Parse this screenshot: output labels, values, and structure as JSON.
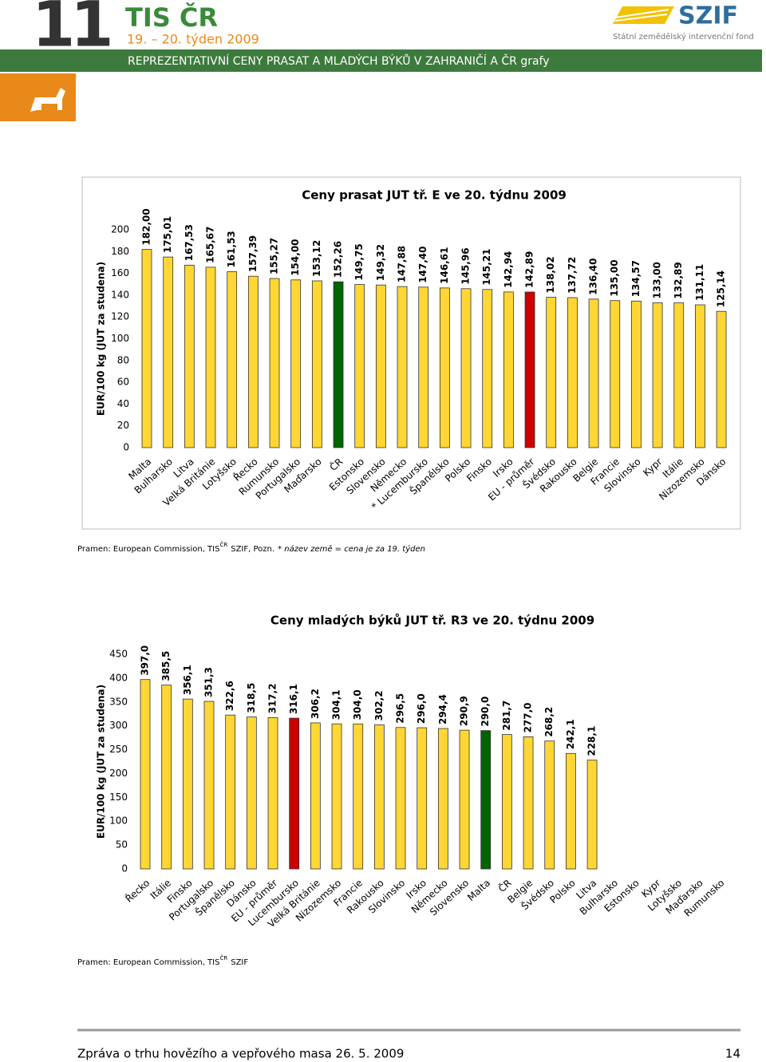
{
  "header": {
    "number": "11",
    "brand": "TIS ČR",
    "week": "19. – 20. týden 2009",
    "subtitle": "REPREZENTATIVNÍ CENY PRASAT A MLADÝCH BÝKŮ V ZAHRANIČÍ A ČR grafy",
    "logo": "SZIF",
    "logo_caption": "Státní zemědělský intervenční fond"
  },
  "chart_data": [
    {
      "type": "bar",
      "title": "Ceny prasat JUT tř. E ve 20. týdnu 2009",
      "y_label": "EUR/100 kg (JUT za studena)",
      "categories": [
        "Malta",
        "Bulharsko",
        "Litva",
        "Velká Británie",
        "Lotyšsko",
        "Řecko",
        "Rumunsko",
        "Portugalsko",
        "Maďarsko",
        "ČR",
        "Estonsko",
        "Slovensko",
        "Německo",
        "* Lucembursko",
        "Španělsko",
        "Polsko",
        "Finsko",
        "Irsko",
        "EU - průměr",
        "Švédsko",
        "Rakousko",
        "Belgie",
        "Francie",
        "Slovinsko",
        "Kypr",
        "Itálie",
        "Nizozemsko",
        "Dánsko"
      ],
      "values": [
        182.0,
        175.01,
        167.53,
        165.67,
        161.53,
        157.39,
        155.27,
        154.0,
        153.12,
        152.26,
        149.75,
        149.32,
        147.88,
        147.4,
        146.61,
        145.96,
        145.21,
        142.94,
        142.89,
        138.02,
        137.72,
        136.4,
        135.0,
        134.57,
        133.0,
        132.89,
        131.11,
        125.14
      ],
      "value_labels": [
        "182,00",
        "175,01",
        "167,53",
        "165,67",
        "161,53",
        "157,39",
        "155,27",
        "154,00",
        "153,12",
        "152,26",
        "149,75",
        "149,32",
        "147,88",
        "147,40",
        "146,61",
        "145,96",
        "145,21",
        "142,94",
        "142,89",
        "138,02",
        "137,72",
        "136,40",
        "135,00",
        "134,57",
        "133,00",
        "132,89",
        "131,11",
        "125,14"
      ],
      "colors": [
        "#ffd633",
        "#ffd633",
        "#ffd633",
        "#ffd633",
        "#ffd633",
        "#ffd633",
        "#ffd633",
        "#ffd633",
        "#ffd633",
        "#006400",
        "#ffd633",
        "#ffd633",
        "#ffd633",
        "#ffd633",
        "#ffd633",
        "#ffd633",
        "#ffd633",
        "#ffd633",
        "#cc0000",
        "#ffd633",
        "#ffd633",
        "#ffd633",
        "#ffd633",
        "#ffd633",
        "#ffd633",
        "#ffd633",
        "#ffd633",
        "#ffd633"
      ],
      "ylim": [
        0,
        200
      ],
      "yticks": [
        0,
        20,
        40,
        60,
        80,
        100,
        120,
        140,
        160,
        180,
        200
      ]
    },
    {
      "type": "bar",
      "title": "Ceny mladých býků JUT tř. R3 ve 20. týdnu 2009",
      "y_label": "EUR/100 kg (JUT za studena)",
      "categories": [
        "Řecko",
        "Itálie",
        "Finsko",
        "Portugalsko",
        "Španělsko",
        "Dánsko",
        "EU - průměr",
        "Lucembursko",
        "Velká Británie",
        "Nizozemsko",
        "Francie",
        "Rakousko",
        "Slovinsko",
        "Irsko",
        "Německo",
        "Slovensko",
        "Malta",
        "ČR",
        "Belgie",
        "Švédsko",
        "Polsko",
        "Litva",
        "Bulharsko",
        "Estonsko",
        "Kypr",
        "Lotyšsko",
        "Maďarsko",
        "Rumunsko"
      ],
      "values": [
        397.0,
        385.5,
        356.1,
        351.3,
        322.6,
        318.5,
        317.2,
        316.1,
        306.2,
        304.1,
        304.0,
        302.2,
        296.5,
        296.0,
        294.4,
        290.9,
        290.0,
        281.7,
        277.0,
        268.2,
        242.1,
        228.1,
        null,
        null,
        null,
        null,
        null,
        null
      ],
      "value_labels": [
        "397,0",
        "385,5",
        "356,1",
        "351,3",
        "322,6",
        "318,5",
        "317,2",
        "316,1",
        "306,2",
        "304,1",
        "304,0",
        "302,2",
        "296,5",
        "296,0",
        "294,4",
        "290,9",
        "290,0",
        "281,7",
        "277,0",
        "268,2",
        "242,1",
        "228,1",
        null,
        null,
        null,
        null,
        null,
        null
      ],
      "colors": [
        "#ffd633",
        "#ffd633",
        "#ffd633",
        "#ffd633",
        "#ffd633",
        "#ffd633",
        "#ffd633",
        "#cc0000",
        "#ffd633",
        "#ffd633",
        "#ffd633",
        "#ffd633",
        "#ffd633",
        "#ffd633",
        "#ffd633",
        "#ffd633",
        "#006400",
        "#ffd633",
        "#ffd633",
        "#ffd633",
        "#ffd633",
        "#ffd633",
        "#ffd633",
        "#ffd633",
        "#ffd633",
        "#ffd633",
        "#ffd633",
        "#ffd633"
      ],
      "ylim": [
        0,
        450
      ],
      "yticks": [
        0,
        50,
        100,
        150,
        200,
        250,
        300,
        350,
        400,
        450
      ]
    }
  ],
  "sources": [
    {
      "text": "Pramen: European Commission, TIS",
      "sup": "ČR",
      "rest": "SZIF, Pozn.",
      "note": "* název země = cena je za 19. týden"
    },
    {
      "text": "Pramen: European Commission, TIS",
      "sup": "ČR",
      "rest": "SZIF"
    }
  ],
  "footer": {
    "text": "Zpráva o trhu hovězího a vepřového masa 26. 5. 2009",
    "page": "14"
  }
}
